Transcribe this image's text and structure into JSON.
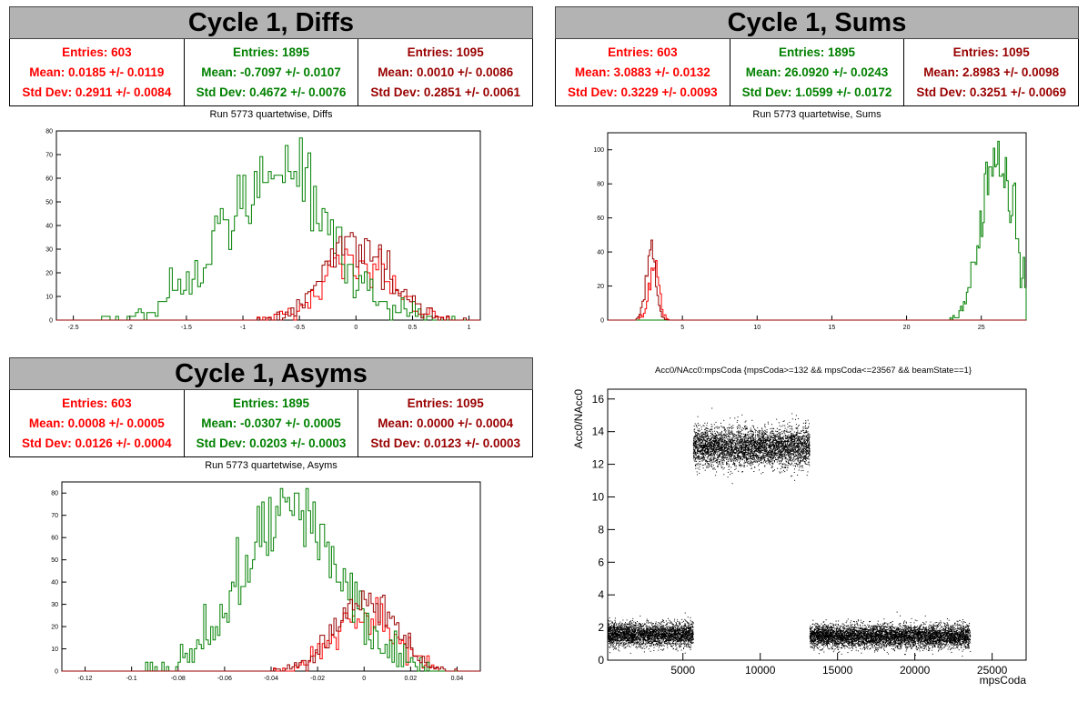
{
  "colors": {
    "set1": "#ff0000",
    "set2": "#008000",
    "set3": "#990000",
    "scatter": "#000000"
  },
  "panels": {
    "diffs": {
      "title": "Cycle 1, Diffs",
      "subtitle": "Run 5773 quartetwise, Diffs",
      "stats": [
        {
          "entries": "Entries: 603",
          "mean": "Mean: 0.0185 +/- 0.0119",
          "std": "Std Dev: 0.2911 +/- 0.0084"
        },
        {
          "entries": "Entries: 1895",
          "mean": "Mean: -0.7097 +/- 0.0107",
          "std": "Std Dev: 0.4672 +/- 0.0076"
        },
        {
          "entries": "Entries: 1095",
          "mean": "Mean: 0.0010 +/- 0.0086",
          "std": "Std Dev: 0.2851 +/- 0.0061"
        }
      ]
    },
    "sums": {
      "title": "Cycle 1, Sums",
      "subtitle": "Run 5773 quartetwise, Sums",
      "stats": [
        {
          "entries": "Entries: 603",
          "mean": "Mean: 3.0883 +/- 0.0132",
          "std": "Std Dev: 0.3229 +/- 0.0093"
        },
        {
          "entries": "Entries: 1895",
          "mean": "Mean: 26.0920 +/- 0.0243",
          "std": "Std Dev: 1.0599 +/- 0.0172"
        },
        {
          "entries": "Entries: 1095",
          "mean": "Mean: 2.8983 +/- 0.0098",
          "std": "Std Dev: 0.3251 +/- 0.0069"
        }
      ]
    },
    "asyms": {
      "title": "Cycle 1, Asyms",
      "subtitle": "Run 5773 quartetwise, Asyms",
      "stats": [
        {
          "entries": "Entries: 603",
          "mean": "Mean: 0.0008 +/- 0.0005",
          "std": "Std Dev: 0.0126 +/- 0.0004"
        },
        {
          "entries": "Entries: 1895",
          "mean": "Mean: -0.0307 +/- 0.0005",
          "std": "Std Dev: 0.0203 +/- 0.0003"
        },
        {
          "entries": "Entries: 1095",
          "mean": "Mean: 0.0000 +/- 0.0004",
          "std": "Std Dev: 0.0123 +/- 0.0003"
        }
      ]
    }
  },
  "chart_data": [
    {
      "id": "diffs",
      "type": "histogram",
      "xlim": [
        -2.65,
        1.1
      ],
      "ylim": [
        0,
        80
      ],
      "xticks": [
        "-2.5",
        "-2",
        "-1.5",
        "-1",
        "-0.5",
        "0",
        "0.5",
        "1"
      ],
      "yticks": [
        "0",
        "10",
        "20",
        "30",
        "40",
        "50",
        "60",
        "70",
        "80"
      ],
      "series": [
        {
          "color": "#ff0000",
          "count": 603,
          "mean": 0.0185,
          "std": 0.2911,
          "peak": 30
        },
        {
          "color": "#008000",
          "count": 1895,
          "mean": -0.7097,
          "std": 0.4672,
          "peak": 77
        },
        {
          "color": "#990000",
          "count": 1095,
          "mean": 0.001,
          "std": 0.2851,
          "peak": 37
        }
      ]
    },
    {
      "id": "sums",
      "type": "histogram",
      "xlim": [
        0,
        28
      ],
      "ylim": [
        0,
        110
      ],
      "xticks": [
        "5",
        "10",
        "15",
        "20",
        "25"
      ],
      "yticks": [
        "0",
        "20",
        "40",
        "60",
        "80",
        "100"
      ],
      "series": [
        {
          "color": "#ff0000",
          "count": 603,
          "mean": 3.0883,
          "std": 0.3229,
          "peak": 35
        },
        {
          "color": "#008000",
          "count": 1895,
          "mean": 26.092,
          "std": 1.0599,
          "peak": 105
        },
        {
          "color": "#990000",
          "count": 1095,
          "mean": 2.8983,
          "std": 0.3251,
          "peak": 47
        }
      ]
    },
    {
      "id": "asyms",
      "type": "histogram",
      "xlim": [
        -0.13,
        0.05
      ],
      "ylim": [
        0,
        85
      ],
      "xticks": [
        "-0.12",
        "-0.1",
        "-0.08",
        "-0.06",
        "-0.04",
        "-0.02",
        "0",
        "0.02",
        "0.04"
      ],
      "yticks": [
        "0",
        "10",
        "20",
        "30",
        "40",
        "50",
        "60",
        "70",
        "80"
      ],
      "series": [
        {
          "color": "#ff0000",
          "count": 603,
          "mean": 0.0008,
          "std": 0.0126,
          "peak": 33
        },
        {
          "color": "#008000",
          "count": 1895,
          "mean": -0.0307,
          "std": 0.0203,
          "peak": 82
        },
        {
          "color": "#990000",
          "count": 1095,
          "mean": 0.0,
          "std": 0.0123,
          "peak": 36
        }
      ]
    },
    {
      "id": "scatter",
      "type": "scatter",
      "title": "Acc0/NAcc0:mpsCoda {mpsCoda>=132 && mpsCoda<=23567 && beamState==1}",
      "xlabel": "mpsCoda",
      "ylabel": "Acc0/NAcc0",
      "xlim": [
        132,
        27200
      ],
      "ylim": [
        0,
        16.6
      ],
      "xticks": [
        "5000",
        "10000",
        "15000",
        "20000",
        "25000"
      ],
      "yticks": [
        "0",
        "2",
        "4",
        "6",
        "8",
        "10",
        "12",
        "14",
        "16"
      ],
      "clusters": [
        {
          "x": [
            132,
            5650
          ],
          "y_center": 1.6,
          "y_spread": 0.35
        },
        {
          "x": [
            5650,
            13180
          ],
          "y_center": 13.1,
          "y_spread": 0.6
        },
        {
          "x": [
            13180,
            23567
          ],
          "y_center": 1.5,
          "y_spread": 0.35
        }
      ]
    }
  ]
}
